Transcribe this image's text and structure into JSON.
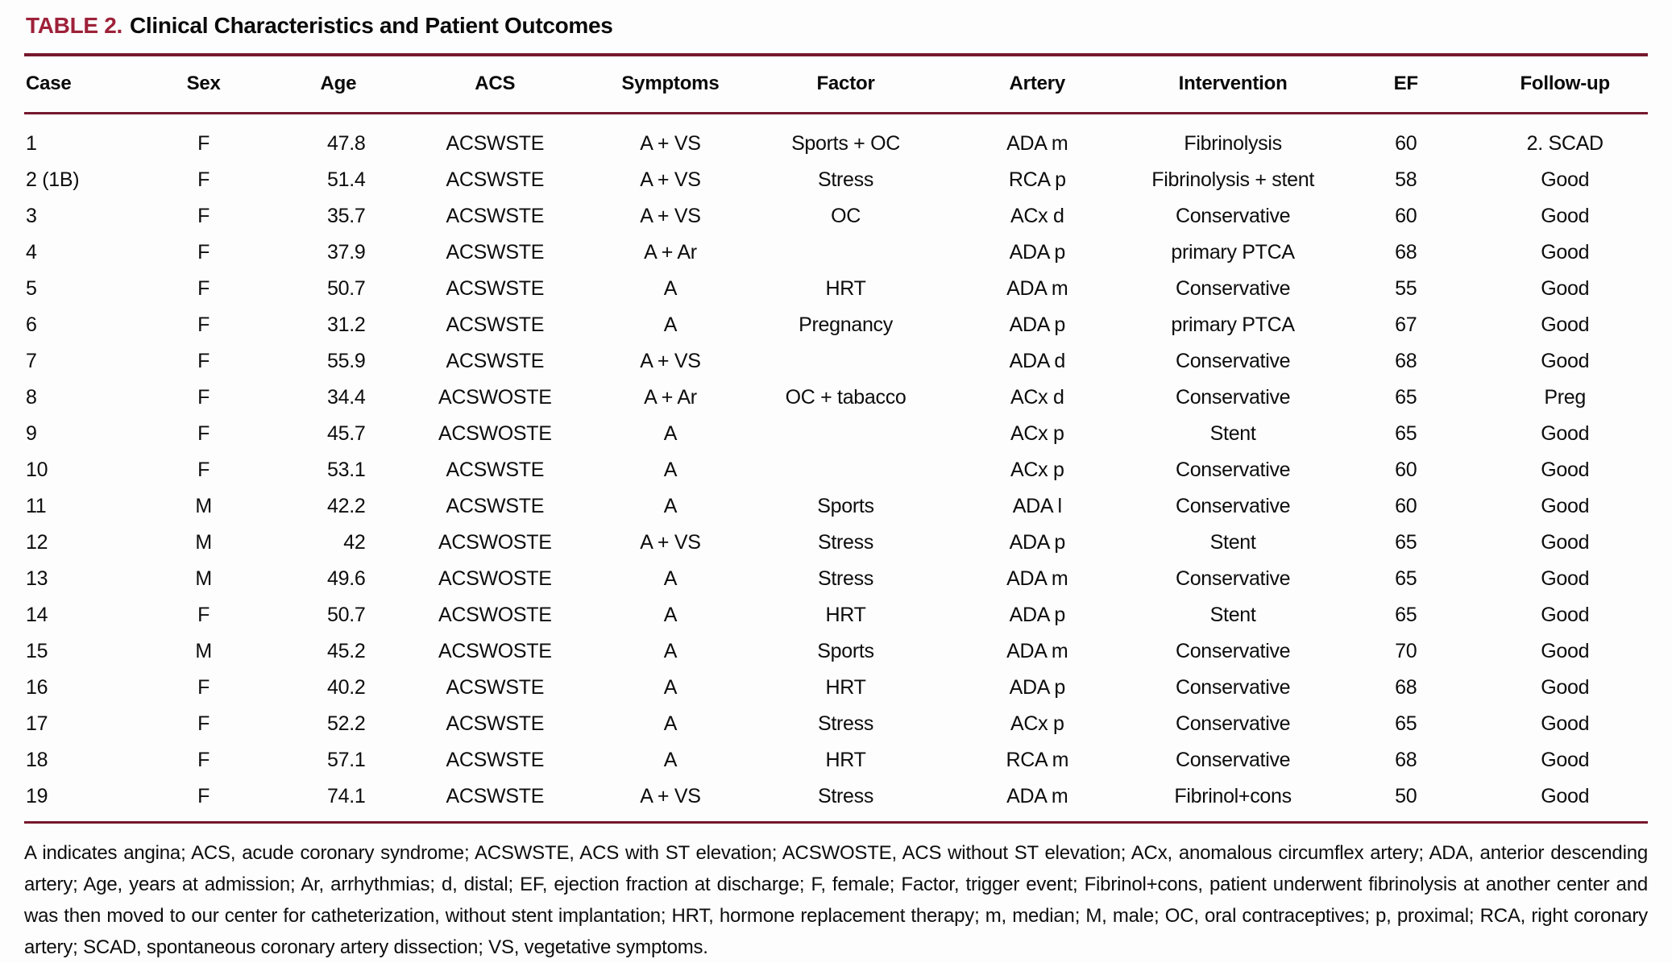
{
  "title": {
    "label": "TABLE 2.",
    "text": "Clinical Characteristics and Patient Outcomes"
  },
  "table": {
    "columns": [
      "Case",
      "Sex",
      "Age",
      "ACS",
      "Symptoms",
      "Factor",
      "Artery",
      "Intervention",
      "EF",
      "Follow-up"
    ],
    "rows": [
      [
        "1",
        "F",
        "47.8",
        "ACSWSTE",
        "A + VS",
        "Sports + OC",
        "ADA m",
        "Fibrinolysis",
        "60",
        "2. SCAD"
      ],
      [
        "2 (1B)",
        "F",
        "51.4",
        "ACSWSTE",
        "A + VS",
        "Stress",
        "RCA p",
        "Fibrinolysis + stent",
        "58",
        "Good"
      ],
      [
        "3",
        "F",
        "35.7",
        "ACSWSTE",
        "A + VS",
        "OC",
        "ACx d",
        "Conservative",
        "60",
        "Good"
      ],
      [
        "4",
        "F",
        "37.9",
        "ACSWSTE",
        "A + Ar",
        "",
        "ADA p",
        "primary PTCA",
        "68",
        "Good"
      ],
      [
        "5",
        "F",
        "50.7",
        "ACSWSTE",
        "A",
        "HRT",
        "ADA m",
        "Conservative",
        "55",
        "Good"
      ],
      [
        "6",
        "F",
        "31.2",
        "ACSWSTE",
        "A",
        "Pregnancy",
        "ADA p",
        "primary PTCA",
        "67",
        "Good"
      ],
      [
        "7",
        "F",
        "55.9",
        "ACSWSTE",
        "A + VS",
        "",
        "ADA d",
        "Conservative",
        "68",
        "Good"
      ],
      [
        "8",
        "F",
        "34.4",
        "ACSWOSTE",
        "A + Ar",
        "OC + tabacco",
        "ACx d",
        "Conservative",
        "65",
        "Preg"
      ],
      [
        "9",
        "F",
        "45.7",
        "ACSWOSTE",
        "A",
        "",
        "ACx p",
        "Stent",
        "65",
        "Good"
      ],
      [
        "10",
        "F",
        "53.1",
        "ACSWSTE",
        "A",
        "",
        "ACx p",
        "Conservative",
        "60",
        "Good"
      ],
      [
        "11",
        "M",
        "42.2",
        "ACSWSTE",
        "A",
        "Sports",
        "ADA l",
        "Conservative",
        "60",
        "Good"
      ],
      [
        "12",
        "M",
        "42",
        "ACSWOSTE",
        "A + VS",
        "Stress",
        "ADA p",
        "Stent",
        "65",
        "Good"
      ],
      [
        "13",
        "M",
        "49.6",
        "ACSWOSTE",
        "A",
        "Stress",
        "ADA m",
        "Conservative",
        "65",
        "Good"
      ],
      [
        "14",
        "F",
        "50.7",
        "ACSWOSTE",
        "A",
        "HRT",
        "ADA p",
        "Stent",
        "65",
        "Good"
      ],
      [
        "15",
        "M",
        "45.2",
        "ACSWOSTE",
        "A",
        "Sports",
        "ADA m",
        "Conservative",
        "70",
        "Good"
      ],
      [
        "16",
        "F",
        "40.2",
        "ACSWSTE",
        "A",
        "HRT",
        "ADA p",
        "Conservative",
        "68",
        "Good"
      ],
      [
        "17",
        "F",
        "52.2",
        "ACSWSTE",
        "A",
        "Stress",
        "ACx p",
        "Conservative",
        "65",
        "Good"
      ],
      [
        "18",
        "F",
        "57.1",
        "ACSWSTE",
        "A",
        "HRT",
        "RCA m",
        "Conservative",
        "68",
        "Good"
      ],
      [
        "19",
        "F",
        "74.1",
        "ACSWSTE",
        "A + VS",
        "Stress",
        "ADA m",
        "Fibrinol+cons",
        "50",
        "Good"
      ]
    ]
  },
  "footnote": "A indicates angina; ACS, acude coronary syndrome; ACSWSTE, ACS with ST elevation; ACSWOSTE, ACS without ST elevation; ACx, anomalous circumflex artery; ADA, anterior descending artery; Age, years at admission; Ar, arrhythmias; d, distal; EF, ejection fraction at discharge; F, female; Factor, trigger event; Fibrinol+cons, patient underwent fibrinolysis at another center and was then moved to our center for catheterization, without stent implantation; HRT, hormone replacement therapy; m, median; M, male; OC, oral contraceptives; p, proximal; RCA, right coronary artery; SCAD, spontaneous coronary artery dissection; VS, vegetative symptoms.",
  "colors": {
    "title_accent": "#9e2139",
    "rule": "#76182d"
  }
}
